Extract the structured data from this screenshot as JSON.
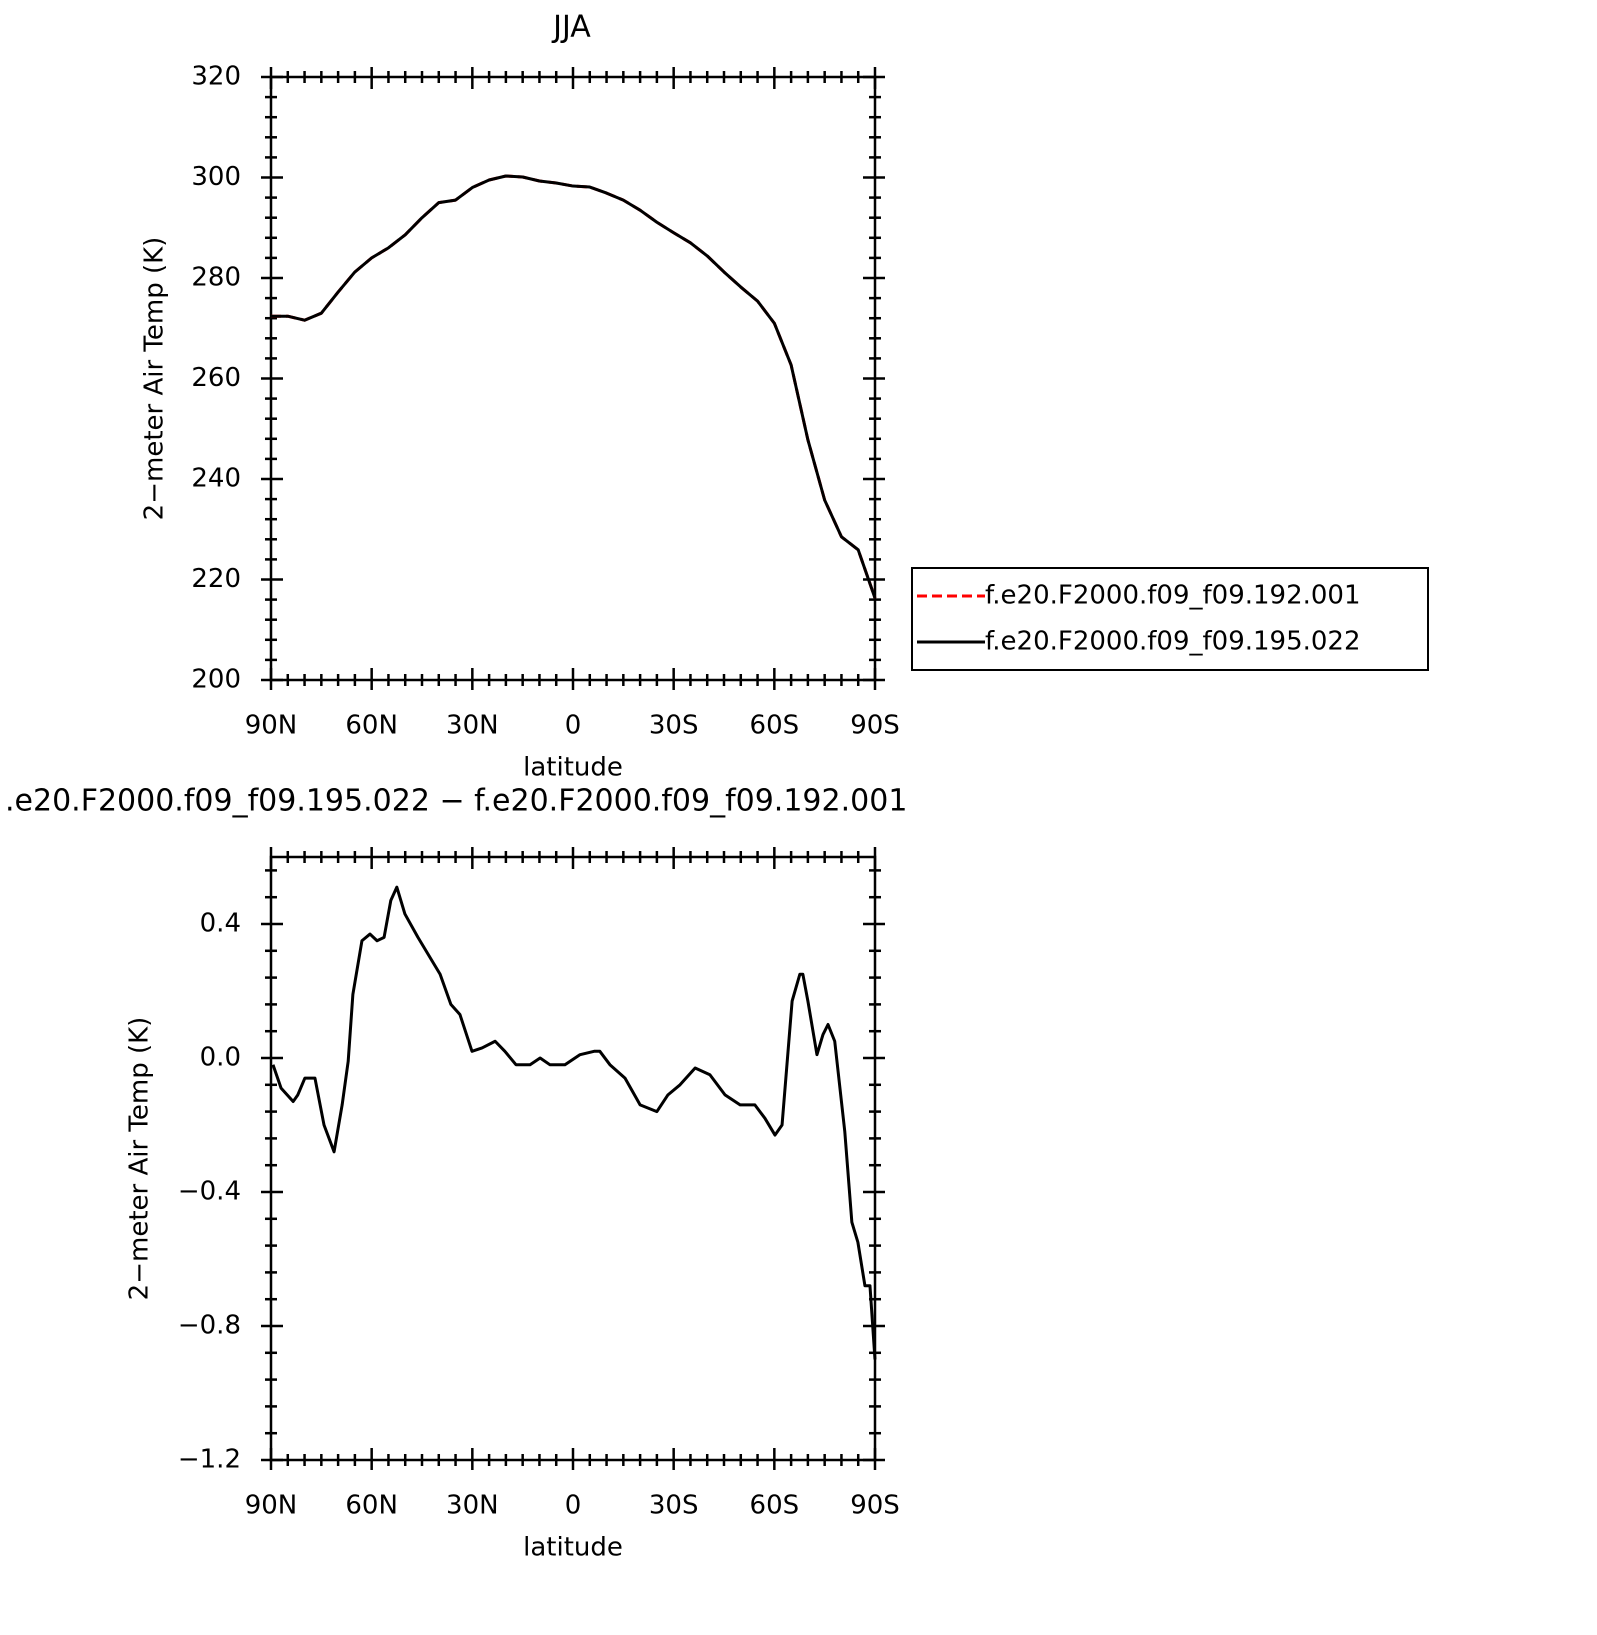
{
  "chart_data": [
    {
      "type": "line",
      "title": "JJA",
      "xlabel": "latitude",
      "ylabel": "2−meter Air Temp (K)",
      "x": [
        90,
        85,
        80,
        75,
        70,
        65,
        60,
        55,
        50,
        45,
        40,
        35,
        30,
        25,
        20,
        15,
        10,
        5,
        0,
        -5,
        -10,
        -15,
        -20,
        -25,
        -30,
        -35,
        -40,
        -45,
        -50,
        -55,
        -60,
        -65,
        -70,
        -75,
        -80,
        -85,
        -90
      ],
      "series": [
        {
          "name": "f.e20.F2000.f09_f09.192.001",
          "color": "#ff0000",
          "dashed": true,
          "values": [
            272.4,
            272.4,
            271.6,
            273,
            277.2,
            281.2,
            284,
            286,
            288.6,
            292,
            295,
            295.5,
            298,
            299.5,
            300.3,
            300.1,
            299.3,
            298.9,
            298.3,
            298.1,
            296.9,
            295.5,
            293.5,
            291.1,
            289,
            287,
            284.4,
            281.2,
            278.2,
            275.4,
            271,
            262.7,
            247.8,
            235.8,
            228.5,
            225.9,
            216.3
          ]
        },
        {
          "name": "f.e20.F2000.f09_f09.195.022",
          "color": "#000000",
          "dashed": false,
          "values": [
            272.4,
            272.4,
            271.6,
            273,
            277.2,
            281.2,
            284,
            286,
            288.6,
            292,
            295,
            295.5,
            298,
            299.5,
            300.3,
            300.1,
            299.3,
            298.9,
            298.3,
            298.1,
            296.9,
            295.5,
            293.5,
            291.1,
            289,
            287,
            284.4,
            281.2,
            278.2,
            275.4,
            271,
            262.7,
            247.8,
            235.8,
            228.5,
            225.9,
            216.3
          ]
        }
      ],
      "xlim": [
        90,
        -90
      ],
      "xticks": [
        {
          "value": 90,
          "label": "90N"
        },
        {
          "value": 60,
          "label": "60N"
        },
        {
          "value": 30,
          "label": "30N"
        },
        0,
        {
          "value": -30,
          "label": "30S"
        },
        {
          "value": -60,
          "label": "60S"
        },
        {
          "value": -90,
          "label": "90S"
        }
      ],
      "ylim": [
        200,
        320
      ],
      "yticks": [
        200,
        220,
        240,
        260,
        280,
        300,
        320
      ],
      "legend": "right"
    },
    {
      "type": "line",
      "title": ".e20.F2000.f09_f09.195.022 − f.e20.F2000.f09_f09.192.001",
      "xlabel": "latitude",
      "ylabel": "2−meter Air Temp (K)",
      "x": [
        89.4,
        87,
        83.4,
        82,
        79.9,
        76.9,
        74.2,
        71.2,
        68.8,
        67,
        65.6,
        62.9,
        60.5,
        58.4,
        56.3,
        54.3,
        52.5,
        50.1,
        46.2,
        42.6,
        39.6,
        36.4,
        33.7,
        30.1,
        27.1,
        23.2,
        20.3,
        17,
        12.8,
        9.8,
        6.9,
        2.4,
        -2.1,
        -6.3,
        -8,
        -11,
        -15.5,
        -20,
        -25,
        -28.3,
        -31.9,
        -36.4,
        -40.8,
        -45.3,
        -49.8,
        -54.2,
        -57.2,
        -60.2,
        -62.3,
        -65.3,
        -67.6,
        -68.5,
        -70,
        -72.7,
        -74.5,
        -76,
        -78,
        -81,
        -83.1,
        -84.9,
        -87,
        -88.5,
        -90
      ],
      "series": [
        {
          "color": "#000000",
          "values": [
            -0.02,
            -0.09,
            -0.13,
            -0.11,
            -0.06,
            -0.06,
            -0.2,
            -0.28,
            -0.14,
            -0.01,
            0.19,
            0.35,
            0.37,
            0.35,
            0.36,
            0.47,
            0.51,
            0.43,
            0.36,
            0.3,
            0.25,
            0.16,
            0.13,
            0.02,
            0.03,
            0.05,
            0.02,
            -0.02,
            -0.02,
            0,
            -0.02,
            -0.02,
            0.01,
            0.02,
            0.02,
            -0.02,
            -0.06,
            -0.14,
            -0.16,
            -0.11,
            -0.08,
            -0.03,
            -0.05,
            -0.11,
            -0.14,
            -0.14,
            -0.18,
            -0.23,
            -0.2,
            0.17,
            0.25,
            0.25,
            0.17,
            0.01,
            0.07,
            0.1,
            0.05,
            -0.22,
            -0.49,
            -0.55,
            -0.68,
            -0.68,
            -0.9
          ]
        }
      ],
      "xlim": [
        90,
        -90
      ],
      "xticks": [
        {
          "value": 90,
          "label": "90N"
        },
        {
          "value": 60,
          "label": "60N"
        },
        {
          "value": 30,
          "label": "30N"
        },
        0,
        {
          "value": -30,
          "label": "30S"
        },
        {
          "value": -60,
          "label": "60S"
        },
        {
          "value": -90,
          "label": "90S"
        }
      ],
      "ylim": [
        -1.2,
        0.6
      ],
      "yticks": [
        {
          "value": -1.2,
          "label": "−1.2"
        },
        {
          "value": -0.8,
          "label": "−0.8"
        },
        {
          "value": -0.4,
          "label": "−0.4"
        },
        {
          "value": 0,
          "label": "0.0"
        },
        0.4
      ]
    }
  ]
}
